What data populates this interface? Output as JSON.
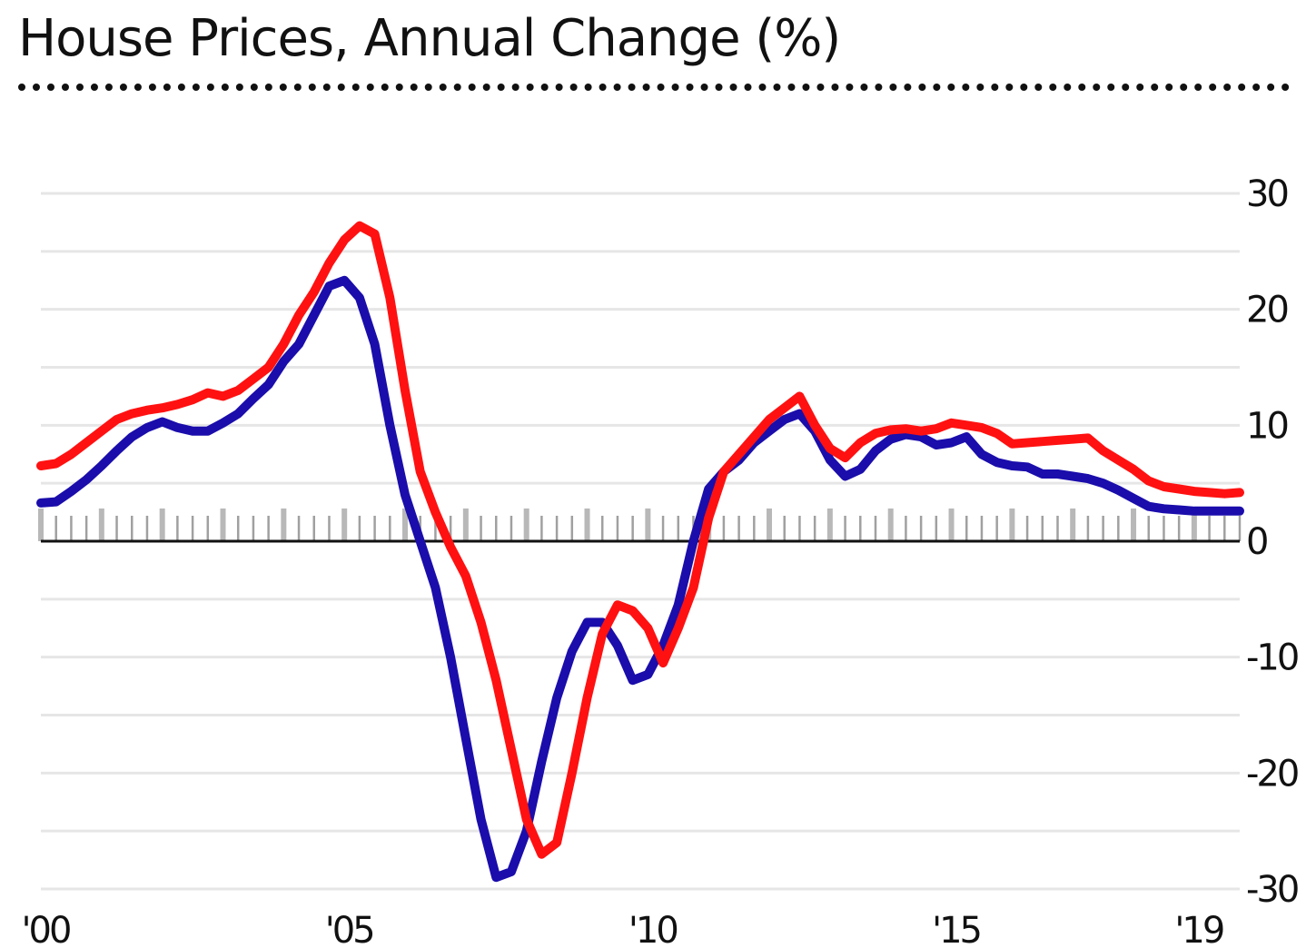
{
  "chart_data": {
    "type": "line",
    "title": "House Prices, Annual Change (%)",
    "xlabel": "",
    "ylabel": "",
    "xlim": [
      2000.0,
      2019.75
    ],
    "ylim": [
      -30,
      30
    ],
    "y_ticks": [
      30,
      20,
      10,
      0,
      -10,
      -20,
      -30
    ],
    "y_tick_labels": [
      "30",
      "20",
      "10",
      "0",
      "-10",
      "-20",
      "-30"
    ],
    "x_ticks": [
      2000,
      2005,
      2010,
      2015,
      2019
    ],
    "x_tick_labels": [
      "'00",
      "'05",
      "'10",
      "'15",
      "'19"
    ],
    "grid": true,
    "y_axis_side": "right",
    "series": [
      {
        "name": "Red series",
        "color": "#ff1111",
        "x": [
          2000.0,
          2000.25,
          2000.5,
          2000.75,
          2001.0,
          2001.25,
          2001.5,
          2001.75,
          2002.0,
          2002.25,
          2002.5,
          2002.75,
          2003.0,
          2003.25,
          2003.5,
          2003.75,
          2004.0,
          2004.25,
          2004.5,
          2004.75,
          2005.0,
          2005.25,
          2005.5,
          2005.75,
          2006.0,
          2006.25,
          2006.5,
          2006.75,
          2007.0,
          2007.25,
          2007.5,
          2007.75,
          2008.0,
          2008.25,
          2008.5,
          2008.75,
          2009.0,
          2009.25,
          2009.5,
          2009.75,
          2010.0,
          2010.25,
          2010.5,
          2010.75,
          2011.0,
          2011.25,
          2011.5,
          2011.75,
          2012.0,
          2012.25,
          2012.5,
          2012.75,
          2013.0,
          2013.25,
          2013.5,
          2013.75,
          2014.0,
          2014.25,
          2014.5,
          2014.75,
          2015.0,
          2015.25,
          2015.5,
          2015.75,
          2016.0,
          2016.25,
          2016.5,
          2016.75,
          2017.0,
          2017.25,
          2017.5,
          2017.75,
          2018.0,
          2018.25,
          2018.5,
          2018.75,
          2019.0,
          2019.25,
          2019.5,
          2019.75
        ],
        "values": [
          6.5,
          6.7,
          7.5,
          8.5,
          9.5,
          10.5,
          11.0,
          11.3,
          11.5,
          11.8,
          12.2,
          12.8,
          12.5,
          13.0,
          14.0,
          15.0,
          17.0,
          19.5,
          21.5,
          24.0,
          26.0,
          27.2,
          26.5,
          21.0,
          13.0,
          6.0,
          2.5,
          -0.5,
          -3.0,
          -7.0,
          -12.0,
          -18.0,
          -24.0,
          -27.0,
          -26.0,
          -20.0,
          -13.5,
          -8.0,
          -5.5,
          -6.0,
          -7.5,
          -10.5,
          -7.5,
          -4.0,
          2.0,
          6.0,
          7.5,
          9.0,
          10.5,
          11.5,
          12.5,
          10.0,
          8.0,
          7.2,
          8.5,
          9.3,
          9.6,
          9.7,
          9.5,
          9.7,
          10.2,
          10.0,
          9.8,
          9.3,
          8.4,
          8.5,
          8.6,
          8.7,
          8.8,
          8.9,
          7.8,
          7.0,
          6.2,
          5.2,
          4.7,
          4.5,
          4.3,
          4.2,
          4.1,
          4.2
        ]
      },
      {
        "name": "Blue series",
        "color": "#1a0dab",
        "x": [
          2000.0,
          2000.25,
          2000.5,
          2000.75,
          2001.0,
          2001.25,
          2001.5,
          2001.75,
          2002.0,
          2002.25,
          2002.5,
          2002.75,
          2003.0,
          2003.25,
          2003.5,
          2003.75,
          2004.0,
          2004.25,
          2004.5,
          2004.75,
          2005.0,
          2005.25,
          2005.5,
          2005.75,
          2006.0,
          2006.25,
          2006.5,
          2006.75,
          2007.0,
          2007.25,
          2007.5,
          2007.75,
          2008.0,
          2008.25,
          2008.5,
          2008.75,
          2009.0,
          2009.25,
          2009.5,
          2009.75,
          2010.0,
          2010.25,
          2010.5,
          2010.75,
          2011.0,
          2011.25,
          2011.5,
          2011.75,
          2012.0,
          2012.25,
          2012.5,
          2012.75,
          2013.0,
          2013.25,
          2013.5,
          2013.75,
          2014.0,
          2014.25,
          2014.5,
          2014.75,
          2015.0,
          2015.25,
          2015.5,
          2015.75,
          2016.0,
          2016.25,
          2016.5,
          2016.75,
          2017.0,
          2017.25,
          2017.5,
          2017.75,
          2018.0,
          2018.25,
          2018.5,
          2018.75,
          2019.0,
          2019.25,
          2019.5,
          2019.75
        ],
        "values": [
          3.3,
          3.4,
          4.3,
          5.3,
          6.5,
          7.8,
          9.0,
          9.8,
          10.3,
          9.8,
          9.5,
          9.5,
          10.2,
          11.0,
          12.3,
          13.5,
          15.5,
          17.0,
          19.5,
          22.0,
          22.5,
          21.0,
          17.0,
          10.0,
          4.0,
          0.0,
          -4.0,
          -10.0,
          -17.0,
          -24.0,
          -29.0,
          -28.5,
          -25.0,
          -19.0,
          -13.5,
          -9.5,
          -7.0,
          -7.0,
          -9.0,
          -12.0,
          -11.5,
          -9.0,
          -5.5,
          0.0,
          4.5,
          6.0,
          7.0,
          8.5,
          9.5,
          10.5,
          11.0,
          9.5,
          7.0,
          5.6,
          6.2,
          7.8,
          8.8,
          9.2,
          9.0,
          8.3,
          8.5,
          9.0,
          7.5,
          6.8,
          6.5,
          6.4,
          5.8,
          5.8,
          5.6,
          5.4,
          5.0,
          4.4,
          3.7,
          3.0,
          2.8,
          2.7,
          2.6,
          2.6,
          2.6,
          2.6
        ]
      }
    ]
  }
}
